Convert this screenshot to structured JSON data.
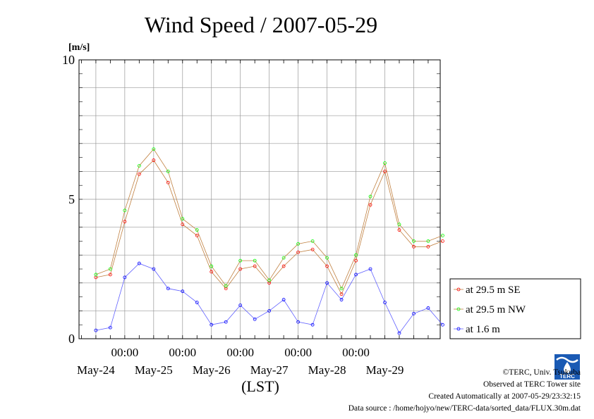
{
  "chart_data": {
    "type": "line",
    "title": "Wind Speed / 2007-05-29",
    "ylabel": "[m/s]",
    "xlabel": "(LST)",
    "ylim": [
      0,
      10
    ],
    "xlim": [
      "2007-05-23 00:00",
      "2007-05-29 24:00"
    ],
    "yticks": [
      "0",
      "5",
      "10"
    ],
    "xticks_time": [
      "00:00",
      "00:00",
      "00:00",
      "00:00",
      "00:00"
    ],
    "xticks_date": [
      "May-24",
      "May-25",
      "May-26",
      "May-27",
      "May-28",
      "May-29"
    ],
    "grid": true,
    "legend_position": "right",
    "series": [
      {
        "name": "at 29.5 m SE",
        "color": "#ff0000",
        "x_hours": [
          0,
          6,
          12,
          18,
          24,
          30,
          36,
          42,
          48,
          54,
          60,
          66,
          72,
          78,
          84,
          90,
          96,
          102,
          108,
          114,
          120,
          126,
          132,
          138,
          144
        ],
        "values": [
          2.2,
          2.3,
          4.2,
          5.9,
          6.4,
          5.6,
          4.1,
          3.7,
          2.4,
          1.8,
          2.5,
          2.6,
          2.0,
          2.6,
          3.1,
          3.2,
          2.6,
          1.6,
          2.8,
          4.8,
          6.0,
          3.9,
          3.3,
          3.3,
          3.5
        ]
      },
      {
        "name": "at 29.5 m NW",
        "color": "#00ff00",
        "x_hours": [
          0,
          6,
          12,
          18,
          24,
          30,
          36,
          42,
          48,
          54,
          60,
          66,
          72,
          78,
          84,
          90,
          96,
          102,
          108,
          114,
          120,
          126,
          132,
          138,
          144
        ],
        "values": [
          2.3,
          2.5,
          4.6,
          6.2,
          6.8,
          6.0,
          4.3,
          3.9,
          2.6,
          1.9,
          2.8,
          2.8,
          2.1,
          2.9,
          3.4,
          3.5,
          2.9,
          1.8,
          3.0,
          5.1,
          6.3,
          4.1,
          3.5,
          3.5,
          3.7
        ]
      },
      {
        "name": "at 1.6 m",
        "color": "#0000ff",
        "x_hours": [
          0,
          6,
          12,
          18,
          24,
          30,
          36,
          42,
          48,
          54,
          60,
          66,
          72,
          78,
          84,
          90,
          96,
          102,
          108,
          114,
          120,
          126,
          132,
          138,
          144
        ],
        "values": [
          0.3,
          0.4,
          2.2,
          2.7,
          2.5,
          1.8,
          1.7,
          1.3,
          0.5,
          0.6,
          1.2,
          0.7,
          1.0,
          1.4,
          0.6,
          0.5,
          2.0,
          1.4,
          2.3,
          2.5,
          1.3,
          0.2,
          0.9,
          1.1,
          0.5
        ]
      }
    ]
  },
  "footer": {
    "copyright": "©TERC, Univ. Tsukuba",
    "observed": "Observed at TERC Tower site",
    "created": "Created Automatically at 2007-05-29/23:32:15",
    "datasource": "Data source : /home/hojyo/new/TERC-data/sorted_data/FLUX.30m.dat"
  },
  "logo": {
    "text": "TERC",
    "color": "#1a5ab4"
  }
}
